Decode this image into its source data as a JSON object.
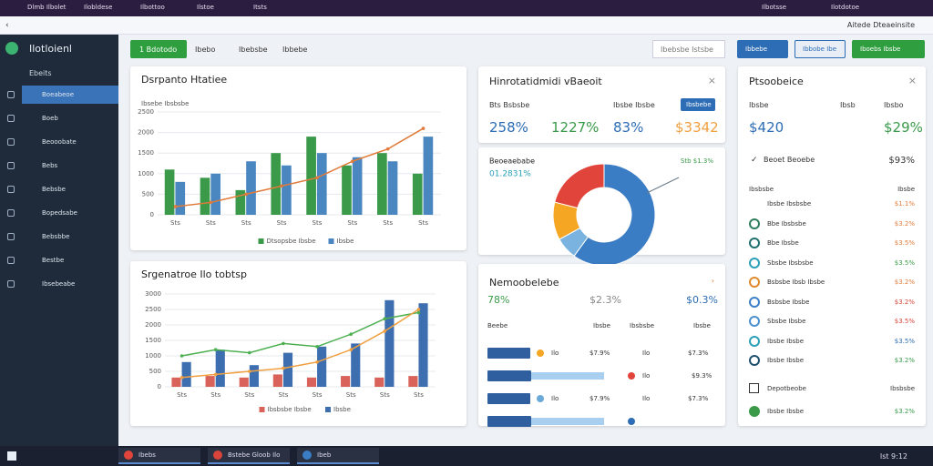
{
  "top_bar": {
    "tabs": [
      "Dlmb Ilbolet",
      "Ilobldese",
      "Ilbottoo",
      "Ilstoe",
      "Itsts"
    ],
    "right": [
      "Ilbotsse",
      "Ilotdotoe"
    ]
  },
  "address_bar": {
    "right": "Aitede Dteaeinsite"
  },
  "sidebar": {
    "logo": "Ilotloienl",
    "section": "Ebeits",
    "items": [
      "Boeabeoe",
      "Boeb",
      "Beooobate",
      "Bebs",
      "Bebsbe",
      "Bopedsabe",
      "Bebsbbe",
      "Bestbe",
      "Ibsebeabe"
    ]
  },
  "toolbar": {
    "primary": "1 Bdotodo",
    "links": [
      "Ibebo",
      "Ibebsbe",
      "Ibbebe"
    ],
    "filter": "Ibebsbe Istsbe",
    "right_buttons": [
      "Ibbebe",
      "Ibbobe Ibe",
      "Iboebs Ibsbe"
    ]
  },
  "revenue_chart": {
    "type": "bar",
    "title": "Dsrpanto Htatiee",
    "subtitle": "Ibsebe Ibsbsbe",
    "categories": [
      "Sts",
      "Sts",
      "Sts",
      "Sts",
      "Sts",
      "Sts",
      "Sts",
      "Sts"
    ],
    "series": [
      {
        "name": "Dtsopsbe Ibsbe",
        "type": "bar",
        "color": "#3a9a4a",
        "values": [
          1100,
          900,
          600,
          1500,
          1900,
          1200,
          1500,
          1000
        ]
      },
      {
        "name": "Ibsbe",
        "type": "bar",
        "color": "#4a86c0",
        "values": [
          800,
          1000,
          1300,
          1200,
          1500,
          1400,
          1300,
          1900
        ]
      },
      {
        "type": "line",
        "color": "#e07b39",
        "values": [
          200,
          300,
          500,
          700,
          900,
          1300,
          1600,
          2100
        ]
      }
    ],
    "ylim": [
      0,
      2500
    ],
    "yticks": [
      0,
      500,
      1000,
      1500,
      2000,
      2500
    ],
    "grid": true
  },
  "trend_chart": {
    "type": "bar",
    "title": "Srgenatroe Ilo tobtsp",
    "categories": [
      "Sts",
      "Sts",
      "Sts",
      "Sts",
      "Sts",
      "Sts",
      "Sts",
      "Sts"
    ],
    "series": [
      {
        "name": "Ibsbsbe Ibsbe",
        "type": "bar",
        "color": "#d9625a",
        "values": [
          300,
          350,
          300,
          400,
          300,
          350,
          300,
          350
        ]
      },
      {
        "name": "Ibsbe",
        "type": "bar",
        "color": "#3d6fb0",
        "values": [
          800,
          1200,
          700,
          1100,
          1300,
          1400,
          2800,
          2700
        ]
      },
      {
        "type": "line",
        "color": "#4caf50",
        "values": [
          1000,
          1200,
          1100,
          1400,
          1300,
          1700,
          2200,
          2400
        ]
      },
      {
        "type": "line",
        "color": "#f0a040",
        "values": [
          300,
          400,
          500,
          600,
          800,
          1200,
          1800,
          2500
        ]
      }
    ],
    "ylim": [
      0,
      3000
    ],
    "yticks": [
      0,
      500,
      1000,
      1500,
      2000,
      2500,
      3000
    ],
    "grid": true
  },
  "stats_card": {
    "title": "Hinrotatidmidi vBaeoit",
    "labels": [
      "Bts Bsbsbe",
      "Ibsbe Ibsbe"
    ],
    "button": "Ibsbebe",
    "stats": [
      {
        "text": "258%",
        "color": "#2d6db5"
      },
      {
        "text": "1227%",
        "color": "#3a9a4a"
      },
      {
        "text": "83%",
        "color": "#2d6db5"
      },
      {
        "text": "$3342",
        "color": "#f0a040"
      }
    ]
  },
  "donut_card": {
    "type": "pie",
    "title": "Beoeaebabe",
    "subtitle": "01.2831%",
    "badge": "Stb $1.3%",
    "values": [
      60,
      7,
      12,
      21
    ],
    "colors": [
      "#3b7dc4",
      "#7ab3df",
      "#f5a623",
      "#e0443a"
    ]
  },
  "table_card": {
    "title": "Nemoobelebe",
    "stats": [
      {
        "text": "78%",
        "color": "#3a9a4a"
      },
      {
        "text": "$2.3%",
        "color": "#888888"
      },
      {
        "text": "$0.3%",
        "color": "#2d6db5"
      }
    ],
    "header": [
      "Beebe",
      "Ibsbe",
      "Ibsbsbe",
      "Ibsbe"
    ],
    "rows": [
      {
        "progress": 0,
        "dot": "#f5a623",
        "cells": [
          "Ilo",
          "$7.9%",
          "Ilo",
          "$7.3%"
        ]
      },
      {
        "progress": 80,
        "dot": "#e0443a",
        "cells": [
          "Ilo",
          "$9.3%"
        ]
      },
      {
        "progress": 0,
        "dot": "#6aa9d8",
        "cells": [
          "Ilo",
          "$7.9%",
          "Ilo",
          "$7.3%"
        ]
      },
      {
        "progress": 80,
        "dot": "#2d6db5",
        "cells": []
      }
    ]
  },
  "list_card": {
    "title": "Ptsoobeice",
    "labels": [
      "Ibsbe",
      "Ibsb",
      "Ibsbo"
    ],
    "stats": [
      {
        "text": "$420",
        "color": "#2d6db5"
      },
      {
        "text": "$29%",
        "color": "#3a9a4a"
      }
    ],
    "feature": {
      "label": "Beoet Beoebe",
      "value": "$93%"
    },
    "header": [
      "Ibsbsbe",
      "Ibsbe"
    ],
    "rows": [
      {
        "name": "Ibsbe Ibsbsbe",
        "value": "$1.1%",
        "color": "#e07b39"
      },
      {
        "name": "Bbe Ibsbsbe",
        "value": "$3.2%",
        "color": "#e07b39",
        "icon": "#2e7d5b"
      },
      {
        "name": "Bbe Ibsbe",
        "value": "$3.5%",
        "color": "#e07b39",
        "icon": "#1f6f6f"
      },
      {
        "name": "Sbsbe Ibsbsbe",
        "value": "$3.5%",
        "color": "#3a9a4a",
        "icon": "#2aa0b8"
      },
      {
        "name": "Bsbsbe Ibsb Ibsbe",
        "value": "$3.2%",
        "color": "#e07b39",
        "icon": "#e08a2c"
      },
      {
        "name": "Bsbsbe Ibsbe",
        "value": "$3.2%",
        "color": "#d9443a",
        "icon": "#3d7fc4"
      },
      {
        "name": "Sbsbe Ibsbe",
        "value": "$3.5%",
        "color": "#d9443a",
        "icon": "#4a90d0"
      },
      {
        "name": "Ibsbe Ibsbe",
        "value": "$3.5%",
        "color": "#2d6db5",
        "icon": "#2aa0b8"
      },
      {
        "name": "Ibsbe Ibsbe",
        "value": "$3.2%",
        "color": "#3a9a4a",
        "icon": "#1f4f6f"
      }
    ],
    "footer": {
      "label": "Depotbeobe",
      "value": "Ibsbsbe",
      "last": "Ibsbe Ibsbe",
      "last_value": "$3.2%"
    }
  },
  "taskbar": {
    "apps": [
      "Ibebs",
      "Bstebe Gloob Ilo",
      "Ibeb"
    ],
    "clock": "Ist 9:12"
  }
}
